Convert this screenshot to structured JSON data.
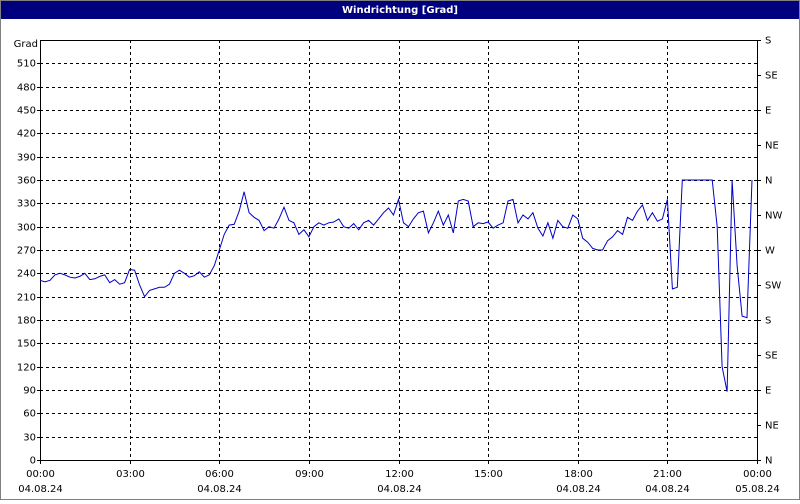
{
  "chart_data": {
    "type": "line",
    "title": "Windrichtung [Grad]",
    "ylabel": "Grad",
    "xlim": [
      0,
      1440
    ],
    "xticks": [
      {
        "value": 0,
        "label": "00:00"
      },
      {
        "value": 180,
        "label": "03:00"
      },
      {
        "value": 360,
        "label": "06:00"
      },
      {
        "value": 540,
        "label": "09:00"
      },
      {
        "value": 720,
        "label": "12:00"
      },
      {
        "value": 900,
        "label": "15:00"
      },
      {
        "value": 1080,
        "label": "18:00"
      },
      {
        "value": 1260,
        "label": "21:00"
      },
      {
        "value": 1440,
        "label": "00:00"
      }
    ],
    "xtick_dates": [
      "04.08.24",
      null,
      "04.08.24",
      null,
      "04.08.24",
      null,
      "04.08.24",
      "04.08.24",
      "05.08.24"
    ],
    "ylim": [
      0,
      540
    ],
    "yticks": [
      0,
      30,
      60,
      90,
      120,
      150,
      180,
      210,
      240,
      270,
      300,
      330,
      360,
      390,
      420,
      450,
      480,
      510
    ],
    "y2lim": [
      0,
      540
    ],
    "y2ticks": [
      {
        "value": 0,
        "label": "N"
      },
      {
        "value": 45,
        "label": "NE"
      },
      {
        "value": 90,
        "label": "E"
      },
      {
        "value": 135,
        "label": "SE"
      },
      {
        "value": 180,
        "label": "S"
      },
      {
        "value": 225,
        "label": "SW"
      },
      {
        "value": 270,
        "label": "W"
      },
      {
        "value": 315,
        "label": "NW"
      },
      {
        "value": 360,
        "label": "N"
      },
      {
        "value": 405,
        "label": "NE"
      },
      {
        "value": 450,
        "label": "E"
      },
      {
        "value": 495,
        "label": "SE"
      },
      {
        "value": 540,
        "label": "S"
      }
    ],
    "grid": true,
    "series": [
      {
        "color": "#0000c8",
        "x": [
          0,
          10,
          20,
          30,
          40,
          50,
          60,
          70,
          80,
          90,
          100,
          110,
          120,
          130,
          140,
          150,
          160,
          170,
          180,
          190,
          200,
          210,
          220,
          230,
          240,
          250,
          260,
          270,
          280,
          290,
          300,
          310,
          320,
          330,
          340,
          350,
          360,
          370,
          380,
          390,
          400,
          410,
          420,
          430,
          440,
          450,
          460,
          470,
          480,
          490,
          500,
          510,
          520,
          530,
          540,
          550,
          560,
          570,
          580,
          590,
          600,
          610,
          620,
          630,
          640,
          650,
          660,
          670,
          680,
          690,
          700,
          710,
          720,
          730,
          740,
          750,
          760,
          770,
          780,
          790,
          800,
          810,
          820,
          830,
          840,
          850,
          860,
          870,
          880,
          890,
          900,
          910,
          920,
          930,
          940,
          950,
          960,
          970,
          980,
          990,
          1000,
          1010,
          1020,
          1030,
          1040,
          1050,
          1060,
          1070,
          1080,
          1090,
          1100,
          1110,
          1120,
          1130,
          1140,
          1150,
          1160,
          1170,
          1180,
          1190,
          1200,
          1210,
          1220,
          1230,
          1240,
          1250,
          1260,
          1270,
          1280,
          1290,
          1300,
          1310,
          1320,
          1330,
          1340,
          1350,
          1360,
          1370,
          1380,
          1390,
          1400,
          1410,
          1420,
          1430
        ],
        "values": [
          231,
          229,
          231,
          238,
          240,
          238,
          235,
          234,
          236,
          240,
          232,
          233,
          236,
          238,
          228,
          232,
          226,
          228,
          245,
          244,
          225,
          210,
          218,
          220,
          222,
          222,
          226,
          240,
          244,
          240,
          235,
          237,
          242,
          235,
          238,
          250,
          270,
          290,
          302,
          303,
          320,
          345,
          318,
          312,
          308,
          295,
          300,
          298,
          310,
          325,
          308,
          305,
          290,
          296,
          287,
          300,
          305,
          302,
          305,
          306,
          310,
          300,
          298,
          304,
          296,
          305,
          308,
          302,
          310,
          318,
          324,
          315,
          335,
          305,
          300,
          310,
          318,
          320,
          292,
          305,
          320,
          302,
          315,
          292,
          333,
          335,
          333,
          300,
          305,
          304,
          306,
          298,
          302,
          305,
          333,
          335,
          305,
          315,
          310,
          318,
          298,
          288,
          305,
          285,
          308,
          300,
          298,
          315,
          310,
          285,
          280,
          272,
          270,
          270,
          282,
          287,
          295,
          290,
          312,
          308,
          320,
          328,
          308,
          318,
          307,
          310,
          335,
          220,
          222,
          360,
          360,
          360,
          360,
          360,
          360,
          360,
          300,
          120,
          88,
          360,
          250,
          185,
          183,
          360
        ]
      }
    ]
  }
}
